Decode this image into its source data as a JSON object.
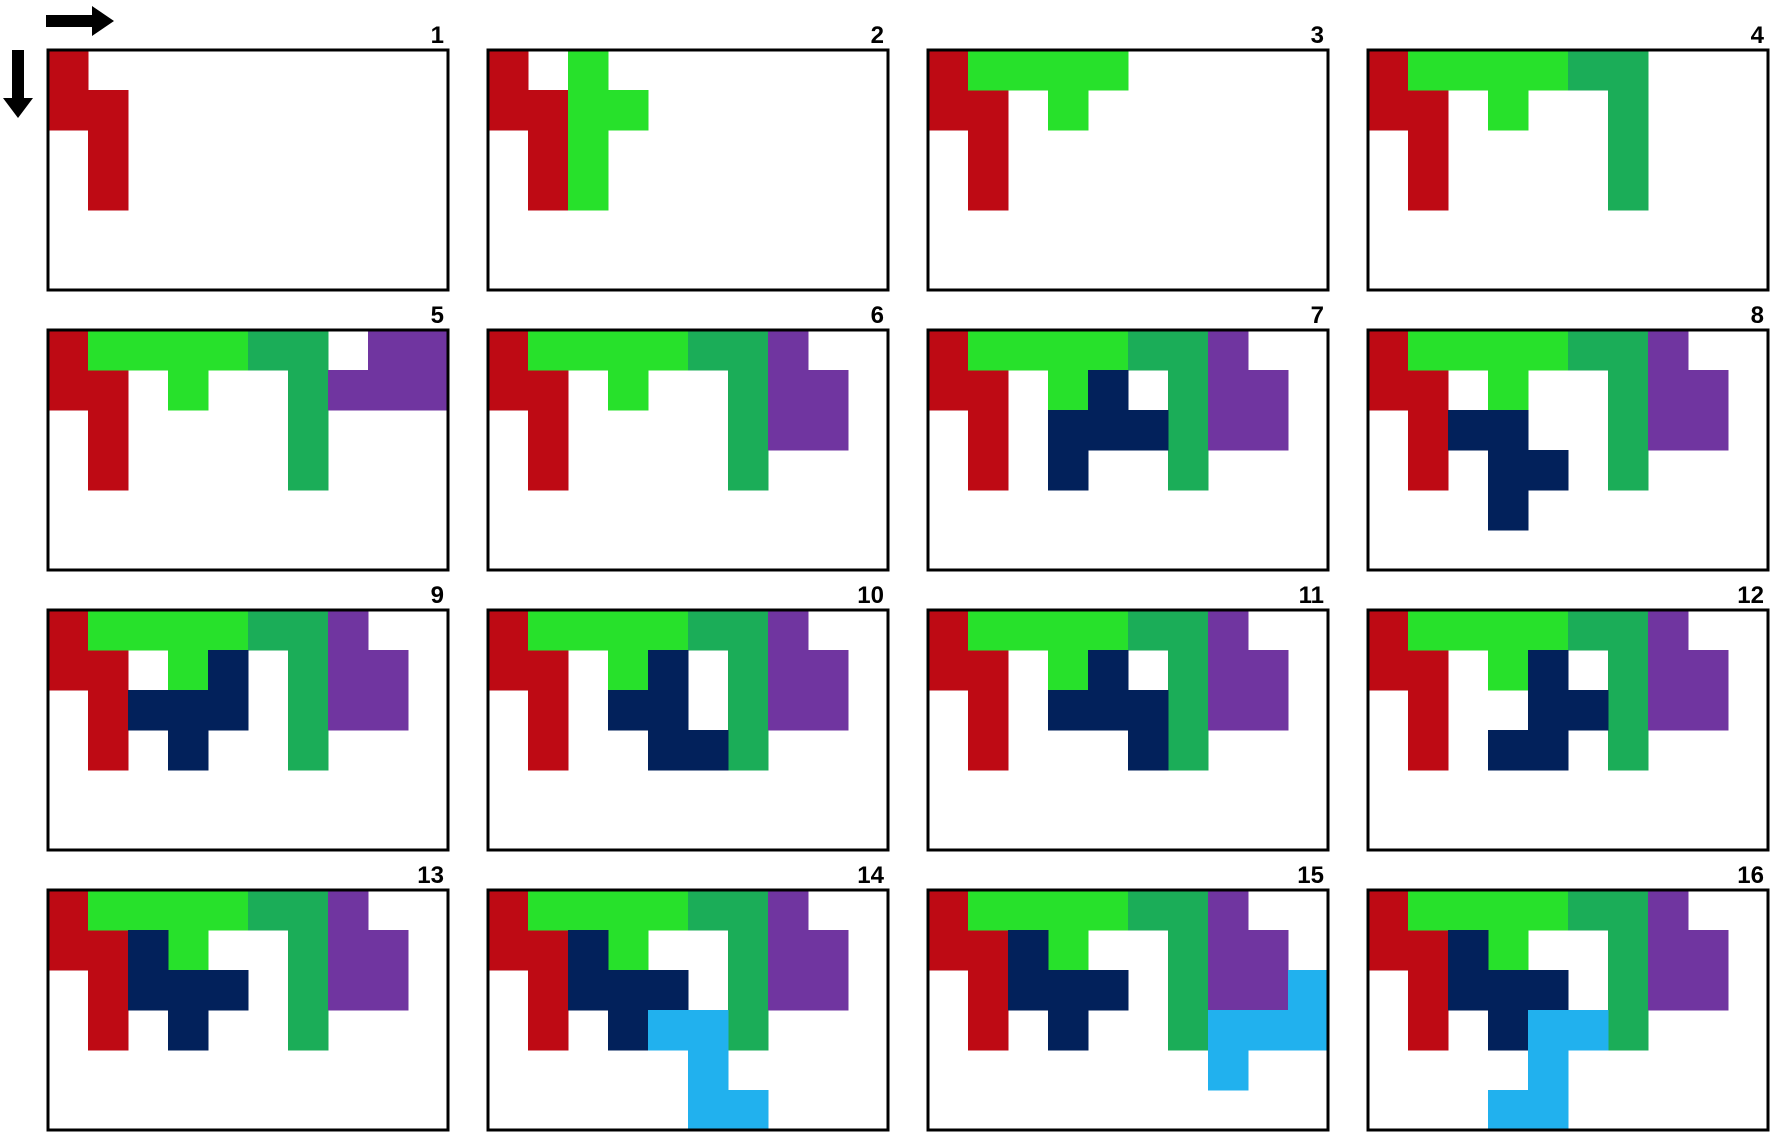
{
  "colors": {
    "red": "#BE0A14",
    "lime": "#27E12B",
    "green": "#1BAD58",
    "purple": "#7035A0",
    "navy": "#02215B",
    "cyan": "#21B1EE",
    "border": "#000000",
    "background": "#FFFFFF"
  },
  "grid": {
    "cols": 10,
    "rows": 6
  },
  "icons": {
    "right": "arrow-right-icon",
    "down": "arrow-down-icon"
  },
  "pieces": {
    "red": [
      [
        0,
        0
      ],
      [
        0,
        1
      ],
      [
        1,
        1
      ],
      [
        1,
        2
      ],
      [
        1,
        3
      ]
    ],
    "lime_a": [
      [
        2,
        0
      ],
      [
        2,
        1
      ],
      [
        3,
        1
      ],
      [
        2,
        2
      ],
      [
        2,
        3
      ]
    ],
    "lime_b": [
      [
        1,
        0
      ],
      [
        2,
        0
      ],
      [
        3,
        0
      ],
      [
        4,
        0
      ],
      [
        3,
        1
      ]
    ],
    "green": [
      [
        5,
        0
      ],
      [
        6,
        0
      ],
      [
        6,
        1
      ],
      [
        6,
        2
      ],
      [
        6,
        3
      ]
    ],
    "purple_a": [
      [
        8,
        0
      ],
      [
        9,
        0
      ],
      [
        7,
        1
      ],
      [
        8,
        1
      ],
      [
        9,
        1
      ]
    ],
    "purple_b": [
      [
        7,
        0
      ],
      [
        7,
        1
      ],
      [
        8,
        1
      ],
      [
        7,
        2
      ],
      [
        8,
        2
      ]
    ],
    "navy_a": [
      [
        4,
        1
      ],
      [
        3,
        2
      ],
      [
        4,
        2
      ],
      [
        5,
        2
      ],
      [
        3,
        3
      ]
    ],
    "navy_b": [
      [
        2,
        2
      ],
      [
        3,
        2
      ],
      [
        3,
        3
      ],
      [
        4,
        3
      ],
      [
        3,
        4
      ]
    ],
    "navy_c": [
      [
        4,
        1
      ],
      [
        2,
        2
      ],
      [
        3,
        2
      ],
      [
        4,
        2
      ],
      [
        3,
        3
      ]
    ],
    "navy_d": [
      [
        4,
        1
      ],
      [
        3,
        2
      ],
      [
        4,
        2
      ],
      [
        4,
        3
      ],
      [
        5,
        3
      ]
    ],
    "navy_e": [
      [
        4,
        1
      ],
      [
        3,
        2
      ],
      [
        4,
        2
      ],
      [
        5,
        2
      ],
      [
        5,
        3
      ]
    ],
    "navy_f": [
      [
        4,
        1
      ],
      [
        4,
        2
      ],
      [
        5,
        2
      ],
      [
        3,
        3
      ],
      [
        4,
        3
      ]
    ],
    "navy_g": [
      [
        2,
        1
      ],
      [
        2,
        2
      ],
      [
        3,
        2
      ],
      [
        4,
        2
      ],
      [
        3,
        3
      ]
    ],
    "navy_h": [
      [
        2,
        1
      ],
      [
        2,
        2
      ],
      [
        3,
        2
      ],
      [
        4,
        2
      ],
      [
        3,
        3
      ]
    ],
    "navy_i": [
      [
        2,
        1
      ],
      [
        2,
        2
      ],
      [
        3,
        2
      ],
      [
        4,
        2
      ],
      [
        3,
        3
      ]
    ],
    "navy_j": [
      [
        2,
        1
      ],
      [
        2,
        2
      ],
      [
        3,
        2
      ],
      [
        4,
        2
      ],
      [
        3,
        3
      ]
    ],
    "cyan_a": [
      [
        4,
        3
      ],
      [
        5,
        3
      ],
      [
        5,
        4
      ],
      [
        5,
        5
      ],
      [
        6,
        5
      ]
    ],
    "cyan_b": [
      [
        9,
        2
      ],
      [
        7,
        3
      ],
      [
        8,
        3
      ],
      [
        9,
        3
      ],
      [
        7,
        4
      ]
    ],
    "cyan_c": [
      [
        4,
        3
      ],
      [
        5,
        3
      ],
      [
        4,
        4
      ],
      [
        3,
        5
      ],
      [
        4,
        5
      ]
    ]
  },
  "panels": [
    {
      "label": "1",
      "pieces": [
        [
          "red",
          "red"
        ]
      ]
    },
    {
      "label": "2",
      "pieces": [
        [
          "red",
          "red"
        ],
        [
          "lime",
          "lime_a"
        ]
      ]
    },
    {
      "label": "3",
      "pieces": [
        [
          "red",
          "red"
        ],
        [
          "lime",
          "lime_b"
        ]
      ]
    },
    {
      "label": "4",
      "pieces": [
        [
          "red",
          "red"
        ],
        [
          "lime",
          "lime_b"
        ],
        [
          "green",
          "green"
        ]
      ]
    },
    {
      "label": "5",
      "pieces": [
        [
          "red",
          "red"
        ],
        [
          "lime",
          "lime_b"
        ],
        [
          "green",
          "green"
        ],
        [
          "purple",
          "purple_a"
        ]
      ]
    },
    {
      "label": "6",
      "pieces": [
        [
          "red",
          "red"
        ],
        [
          "lime",
          "lime_b"
        ],
        [
          "green",
          "green"
        ],
        [
          "purple",
          "purple_b"
        ]
      ]
    },
    {
      "label": "7",
      "pieces": [
        [
          "red",
          "red"
        ],
        [
          "lime",
          "lime_b"
        ],
        [
          "green",
          "green"
        ],
        [
          "purple",
          "purple_b"
        ],
        [
          "navy",
          "navy_a"
        ]
      ]
    },
    {
      "label": "8",
      "pieces": [
        [
          "red",
          "red"
        ],
        [
          "lime",
          "lime_b"
        ],
        [
          "green",
          "green"
        ],
        [
          "purple",
          "purple_b"
        ],
        [
          "navy",
          "navy_b"
        ]
      ]
    },
    {
      "label": "9",
      "pieces": [
        [
          "red",
          "red"
        ],
        [
          "lime",
          "lime_b"
        ],
        [
          "green",
          "green"
        ],
        [
          "purple",
          "purple_b"
        ],
        [
          "navy",
          "navy_c"
        ]
      ]
    },
    {
      "label": "10",
      "pieces": [
        [
          "red",
          "red"
        ],
        [
          "lime",
          "lime_b"
        ],
        [
          "green",
          "green"
        ],
        [
          "purple",
          "purple_b"
        ],
        [
          "navy",
          "navy_d"
        ]
      ]
    },
    {
      "label": "11",
      "pieces": [
        [
          "red",
          "red"
        ],
        [
          "lime",
          "lime_b"
        ],
        [
          "green",
          "green"
        ],
        [
          "purple",
          "purple_b"
        ],
        [
          "navy",
          "navy_e"
        ]
      ]
    },
    {
      "label": "12",
      "pieces": [
        [
          "red",
          "red"
        ],
        [
          "lime",
          "lime_b"
        ],
        [
          "green",
          "green"
        ],
        [
          "purple",
          "purple_b"
        ],
        [
          "navy",
          "navy_f"
        ]
      ]
    },
    {
      "label": "13",
      "pieces": [
        [
          "red",
          "red"
        ],
        [
          "lime",
          "lime_b"
        ],
        [
          "green",
          "green"
        ],
        [
          "purple",
          "purple_b"
        ],
        [
          "navy",
          "navy_g"
        ]
      ]
    },
    {
      "label": "14",
      "pieces": [
        [
          "red",
          "red"
        ],
        [
          "lime",
          "lime_b"
        ],
        [
          "green",
          "green"
        ],
        [
          "purple",
          "purple_b"
        ],
        [
          "navy",
          "navy_h"
        ],
        [
          "cyan",
          "cyan_a"
        ]
      ]
    },
    {
      "label": "15",
      "pieces": [
        [
          "red",
          "red"
        ],
        [
          "lime",
          "lime_b"
        ],
        [
          "green",
          "green"
        ],
        [
          "purple",
          "purple_b"
        ],
        [
          "navy",
          "navy_i"
        ],
        [
          "cyan",
          "cyan_b"
        ]
      ]
    },
    {
      "label": "16",
      "pieces": [
        [
          "red",
          "red"
        ],
        [
          "lime",
          "lime_b"
        ],
        [
          "green",
          "green"
        ],
        [
          "purple",
          "purple_b"
        ],
        [
          "navy",
          "navy_j"
        ],
        [
          "cyan",
          "cyan_c"
        ]
      ]
    }
  ]
}
